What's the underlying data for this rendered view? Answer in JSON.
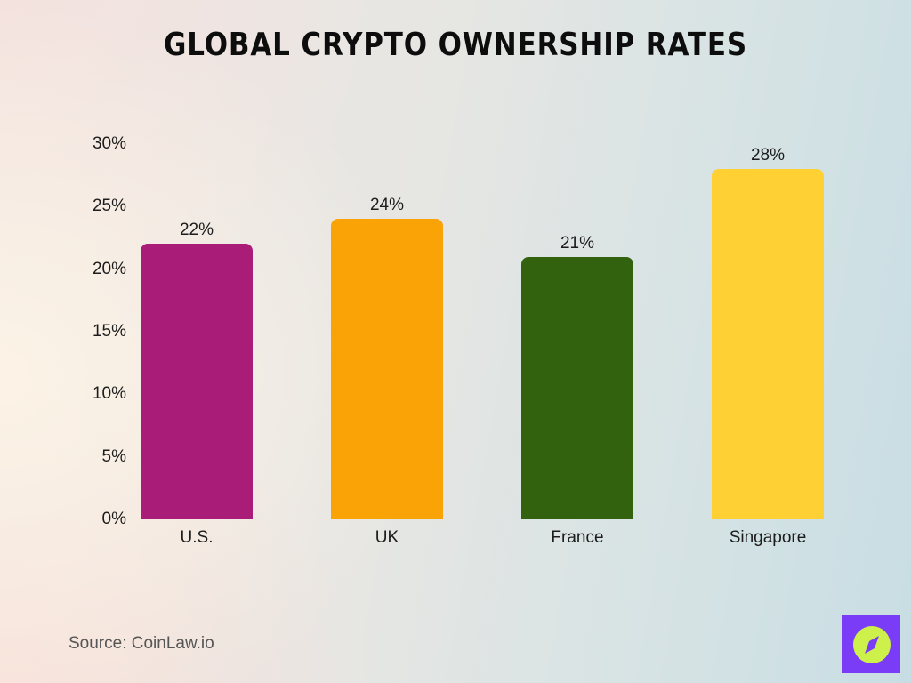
{
  "title": "Global Crypto Ownership Rates",
  "source": "Source: CoinLaw.io",
  "y_ticks": [
    "30%",
    "25%",
    "20%",
    "15%",
    "10%",
    "5%",
    "0%"
  ],
  "bars": [
    {
      "label": "U.S.",
      "value": 22,
      "value_label": "22%",
      "color": "#a91c78"
    },
    {
      "label": "UK",
      "value": 24,
      "value_label": "24%",
      "color": "#faa307"
    },
    {
      "label": "France",
      "value": 21,
      "value_label": "21%",
      "color": "#33620f"
    },
    {
      "label": "Singapore",
      "value": 28,
      "value_label": "28%",
      "color": "#ffd033"
    }
  ],
  "logo": {
    "icon": "compass-icon",
    "bg_color": "#7a3cf6",
    "fg_color": "#cdf04a"
  },
  "chart_data": {
    "type": "bar",
    "title": "Global Crypto Ownership Rates",
    "categories": [
      "U.S.",
      "UK",
      "France",
      "Singapore"
    ],
    "values": [
      22,
      24,
      21,
      28
    ],
    "colors": [
      "#a91c78",
      "#faa307",
      "#33620f",
      "#ffd033"
    ],
    "xlabel": "",
    "ylabel": "",
    "ylim": [
      0,
      30
    ],
    "y_tick_labels": [
      "0%",
      "5%",
      "10%",
      "15%",
      "20%",
      "25%",
      "30%"
    ],
    "data_labels": [
      "22%",
      "24%",
      "21%",
      "28%"
    ],
    "grid": false,
    "legend": "none",
    "source": "Source: CoinLaw.io"
  }
}
